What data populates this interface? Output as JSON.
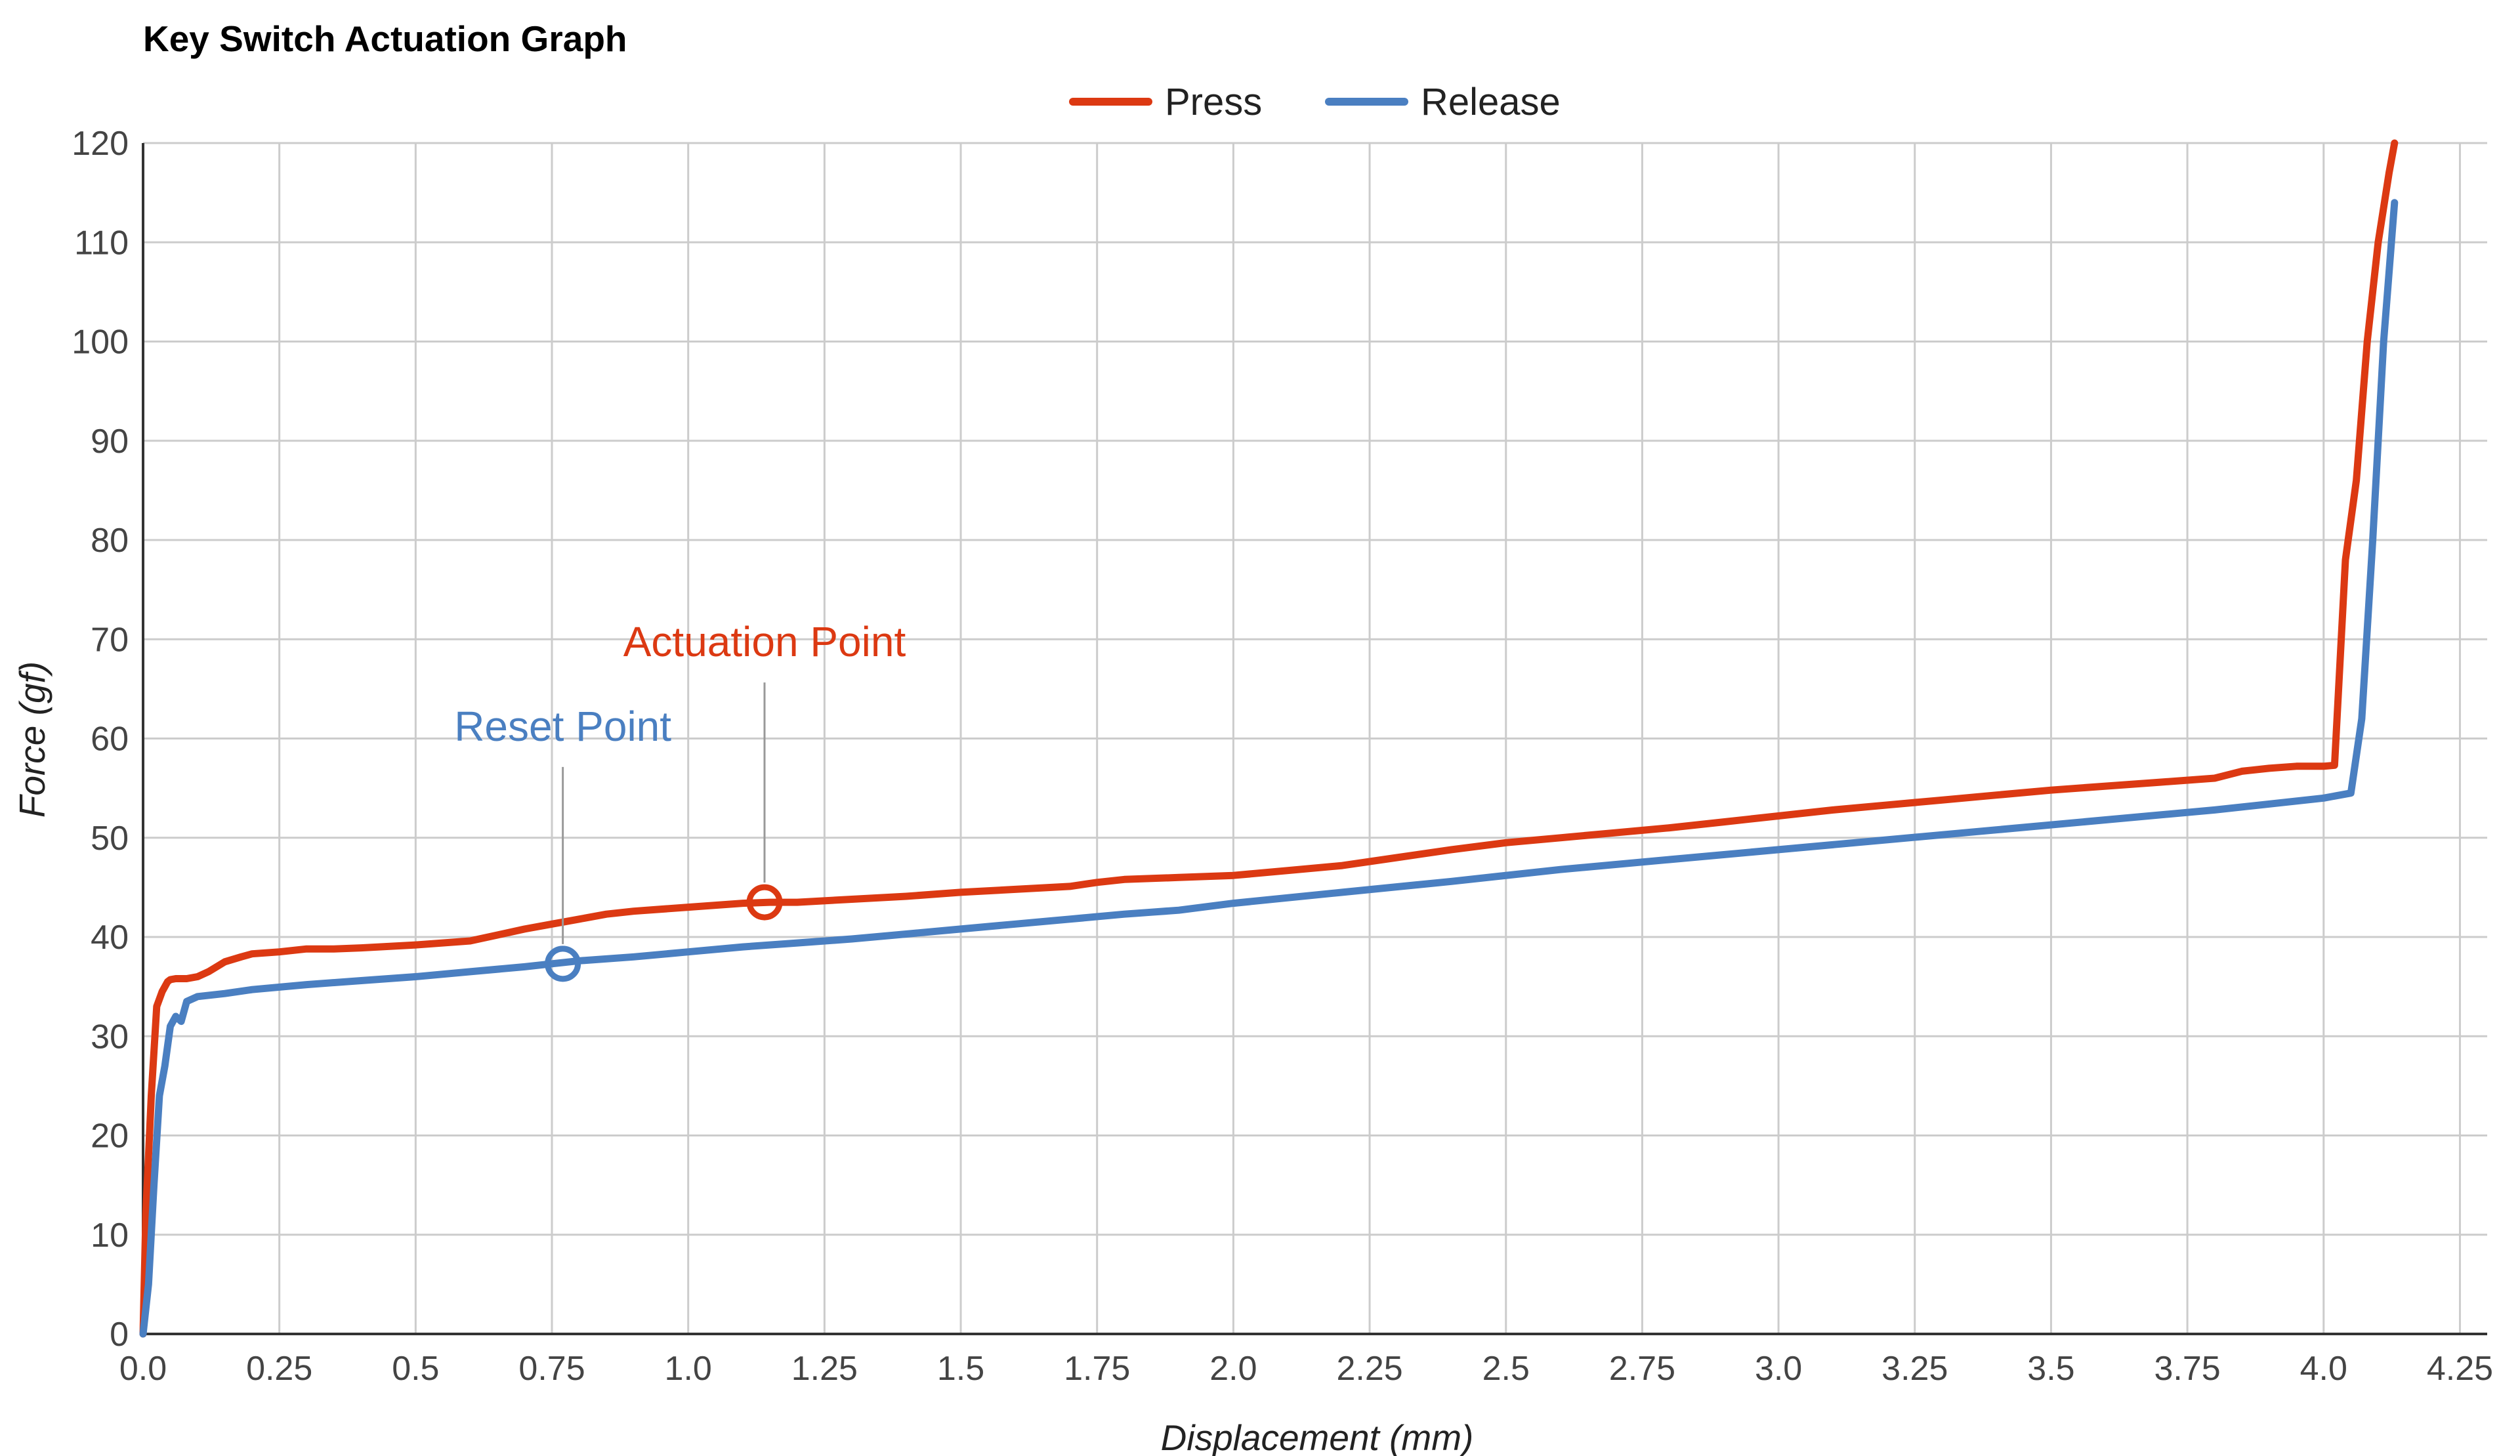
{
  "chart_data": {
    "type": "line",
    "title": "Key Switch Actuation Graph",
    "xlabel": "Displacement (mm)",
    "ylabel": "Force (gf)",
    "xlim": [
      0,
      4.3
    ],
    "ylim": [
      0,
      120
    ],
    "x_ticks": [
      "0.0",
      "0.25",
      "0.5",
      "0.75",
      "1.0",
      "1.25",
      "1.5",
      "1.75",
      "2.0",
      "2.25",
      "2.5",
      "2.75",
      "3.0",
      "3.25",
      "3.5",
      "3.75",
      "4.0",
      "4.25"
    ],
    "x_tick_values": [
      0,
      0.25,
      0.5,
      0.75,
      1.0,
      1.25,
      1.5,
      1.75,
      2.0,
      2.25,
      2.5,
      2.75,
      3.0,
      3.25,
      3.5,
      3.75,
      4.0,
      4.25
    ],
    "y_ticks": [
      0,
      10,
      20,
      30,
      40,
      50,
      60,
      70,
      80,
      90,
      100,
      110,
      120
    ],
    "grid": true,
    "legend": "top-center",
    "series": [
      {
        "name": "Press",
        "color": "#dc3912",
        "x": [
          0.0,
          0.005,
          0.015,
          0.025,
          0.035,
          0.045,
          0.05,
          0.06,
          0.08,
          0.1,
          0.12,
          0.15,
          0.18,
          0.2,
          0.25,
          0.3,
          0.35,
          0.4,
          0.5,
          0.6,
          0.65,
          0.7,
          0.75,
          0.8,
          0.85,
          0.9,
          1.0,
          1.1,
          1.15,
          1.2,
          1.3,
          1.4,
          1.5,
          1.6,
          1.7,
          1.75,
          1.8,
          1.9,
          2.0,
          2.1,
          2.2,
          2.3,
          2.4,
          2.5,
          2.6,
          2.7,
          2.8,
          2.9,
          3.0,
          3.1,
          3.2,
          3.3,
          3.4,
          3.5,
          3.6,
          3.7,
          3.8,
          3.85,
          3.9,
          3.95,
          4.0,
          4.02,
          4.04,
          4.06,
          4.08,
          4.1,
          4.12,
          4.13
        ],
        "y": [
          0,
          12,
          24,
          33,
          34.5,
          35.5,
          35.7,
          35.8,
          35.8,
          36,
          36.5,
          37.5,
          38,
          38.3,
          38.5,
          38.8,
          38.8,
          38.9,
          39.2,
          39.6,
          40.2,
          40.8,
          41.3,
          41.8,
          42.3,
          42.6,
          43.0,
          43.4,
          43.5,
          43.5,
          43.8,
          44.1,
          44.5,
          44.8,
          45.1,
          45.5,
          45.8,
          46.0,
          46.2,
          46.7,
          47.2,
          48.0,
          48.8,
          49.5,
          50.0,
          50.5,
          51.0,
          51.6,
          52.2,
          52.8,
          53.3,
          53.8,
          54.3,
          54.8,
          55.2,
          55.6,
          56.0,
          56.7,
          57.0,
          57.2,
          57.2,
          57.3,
          78,
          86,
          100,
          110,
          117,
          120
        ]
      },
      {
        "name": "Release",
        "color": "#4a7fc1",
        "x": [
          0.0,
          0.01,
          0.02,
          0.03,
          0.04,
          0.05,
          0.06,
          0.07,
          0.08,
          0.1,
          0.15,
          0.2,
          0.3,
          0.4,
          0.5,
          0.6,
          0.7,
          0.75,
          0.8,
          0.9,
          1.0,
          1.1,
          1.2,
          1.3,
          1.4,
          1.5,
          1.6,
          1.7,
          1.8,
          1.85,
          1.9,
          2.0,
          2.2,
          2.4,
          2.6,
          2.8,
          3.0,
          3.2,
          3.4,
          3.6,
          3.8,
          4.0,
          4.05,
          4.07,
          4.09,
          4.11,
          4.13
        ],
        "y": [
          0,
          5,
          15,
          24,
          27,
          31,
          32,
          31.5,
          33.5,
          34.0,
          34.3,
          34.7,
          35.2,
          35.6,
          36.0,
          36.5,
          37.0,
          37.3,
          37.6,
          38.0,
          38.5,
          39.0,
          39.4,
          39.8,
          40.3,
          40.8,
          41.3,
          41.8,
          42.3,
          42.5,
          42.7,
          43.4,
          44.5,
          45.6,
          46.8,
          47.8,
          48.8,
          49.8,
          50.8,
          51.8,
          52.8,
          54.0,
          54.5,
          62,
          80,
          100,
          114
        ]
      }
    ],
    "annotations": [
      {
        "text": "Actuation Point",
        "series": "Press",
        "x": 1.14,
        "y": 43.5,
        "color": "#dc3912"
      },
      {
        "text": "Reset Point",
        "series": "Release",
        "x": 0.77,
        "y": 37.3,
        "color": "#4a7fc1"
      }
    ]
  }
}
